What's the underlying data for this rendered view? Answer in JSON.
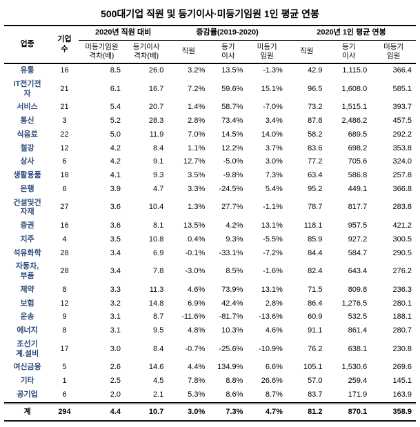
{
  "title": "500대기업 직원 및 등기이사·미등기임원 1인 평균 연봉",
  "colors": {
    "category_text": "#2e4a7b",
    "border": "#000000",
    "background": "#ffffff"
  },
  "header": {
    "industry": "업종",
    "count": "기업\n수",
    "group1": "2020년 직원 대비",
    "group2": "증감률(2019-2020)",
    "group3": "2020년 1인 평균 연봉",
    "g1a": "미등기임원\n격차(배)",
    "g1b": "등기이사\n격차(배)",
    "g2a": "직원",
    "g2b": "등기\n이사",
    "g2c": "미등기\n임원",
    "g3a": "직원",
    "g3b": "등기\n이사",
    "g3c": "미등기\n임원"
  },
  "rows": [
    {
      "cat": "유통",
      "n": "16",
      "a": "8.5",
      "b": "26.0",
      "c": "3.2%",
      "d": "13.5%",
      "e": "-1.3%",
      "f": "42.9",
      "g": "1,115.0",
      "h": "366.4"
    },
    {
      "cat": "IT전기전\n자",
      "n": "21",
      "a": "6.1",
      "b": "16.7",
      "c": "7.2%",
      "d": "59.6%",
      "e": "15.1%",
      "f": "96.5",
      "g": "1,608.0",
      "h": "585.1"
    },
    {
      "cat": "서비스",
      "n": "21",
      "a": "5.4",
      "b": "20.7",
      "c": "1.4%",
      "d": "58.7%",
      "e": "-7.0%",
      "f": "73.2",
      "g": "1,515.1",
      "h": "393.7"
    },
    {
      "cat": "통신",
      "n": "3",
      "a": "5.2",
      "b": "28.3",
      "c": "2.8%",
      "d": "73.4%",
      "e": "3.4%",
      "f": "87.8",
      "g": "2,486.2",
      "h": "457.5"
    },
    {
      "cat": "식음료",
      "n": "22",
      "a": "5.0",
      "b": "11.9",
      "c": "7.0%",
      "d": "14.5%",
      "e": "14.0%",
      "f": "58.2",
      "g": "689.5",
      "h": "292.2"
    },
    {
      "cat": "철강",
      "n": "12",
      "a": "4.2",
      "b": "8.4",
      "c": "1.1%",
      "d": "12.2%",
      "e": "3.7%",
      "f": "83.6",
      "g": "698.2",
      "h": "353.8"
    },
    {
      "cat": "상사",
      "n": "6",
      "a": "4.2",
      "b": "9.1",
      "c": "12.7%",
      "d": "-5.0%",
      "e": "3.0%",
      "f": "77.2",
      "g": "705.6",
      "h": "324.0"
    },
    {
      "cat": "생활용품",
      "n": "18",
      "a": "4.1",
      "b": "9.3",
      "c": "3.5%",
      "d": "-9.8%",
      "e": "7.3%",
      "f": "63.4",
      "g": "586.8",
      "h": "257.8"
    },
    {
      "cat": "은행",
      "n": "6",
      "a": "3.9",
      "b": "4.7",
      "c": "3.3%",
      "d": "-24.5%",
      "e": "5.4%",
      "f": "95.2",
      "g": "449.1",
      "h": "366.8"
    },
    {
      "cat": "건설및건\n자재",
      "n": "27",
      "a": "3.6",
      "b": "10.4",
      "c": "1.3%",
      "d": "27.7%",
      "e": "-1.1%",
      "f": "78.7",
      "g": "817.7",
      "h": "283.8"
    },
    {
      "cat": "증권",
      "n": "16",
      "a": "3.6",
      "b": "8.1",
      "c": "13.5%",
      "d": "4.2%",
      "e": "13.1%",
      "f": "118.1",
      "g": "957.5",
      "h": "421.2"
    },
    {
      "cat": "지주",
      "n": "4",
      "a": "3.5",
      "b": "10.8",
      "c": "0.4%",
      "d": "9.3%",
      "e": "-5.5%",
      "f": "85.9",
      "g": "927.2",
      "h": "300.5"
    },
    {
      "cat": "석유화학",
      "n": "28",
      "a": "3.4",
      "b": "6.9",
      "c": "-0.1%",
      "d": "-33.1%",
      "e": "-7.2%",
      "f": "84.4",
      "g": "584.7",
      "h": "290.5"
    },
    {
      "cat": "자동차,\n부품",
      "n": "28",
      "a": "3.4",
      "b": "7.8",
      "c": "-3.0%",
      "d": "8.5%",
      "e": "-1.6%",
      "f": "82.4",
      "g": "643.4",
      "h": "276.2"
    },
    {
      "cat": "제약",
      "n": "8",
      "a": "3.3",
      "b": "11.3",
      "c": "4.6%",
      "d": "73.9%",
      "e": "13.1%",
      "f": "71.5",
      "g": "809.8",
      "h": "236.3"
    },
    {
      "cat": "보험",
      "n": "12",
      "a": "3.2",
      "b": "14.8",
      "c": "6.9%",
      "d": "42.4%",
      "e": "2.8%",
      "f": "86.4",
      "g": "1,276.5",
      "h": "280.1"
    },
    {
      "cat": "운송",
      "n": "9",
      "a": "3.1",
      "b": "8.7",
      "c": "-11.6%",
      "d": "-81.7%",
      "e": "-13.6%",
      "f": "60.9",
      "g": "532.5",
      "h": "188.1"
    },
    {
      "cat": "에너지",
      "n": "8",
      "a": "3.1",
      "b": "9.5",
      "c": "4.8%",
      "d": "10.3%",
      "e": "4.6%",
      "f": "91.1",
      "g": "861.4",
      "h": "280.7"
    },
    {
      "cat": "조선기\n계.설비",
      "n": "17",
      "a": "3.0",
      "b": "8.4",
      "c": "-0.7%",
      "d": "-25.6%",
      "e": "-10.9%",
      "f": "76.2",
      "g": "638.1",
      "h": "230.8"
    },
    {
      "cat": "여신금융",
      "n": "5",
      "a": "2.6",
      "b": "14.6",
      "c": "4.4%",
      "d": "134.9%",
      "e": "6.6%",
      "f": "105.1",
      "g": "1,530.6",
      "h": "269.6"
    },
    {
      "cat": "기타",
      "n": "1",
      "a": "2.5",
      "b": "4.5",
      "c": "7.8%",
      "d": "8.8%",
      "e": "26.6%",
      "f": "57.0",
      "g": "259.4",
      "h": "145.1"
    },
    {
      "cat": "공기업",
      "n": "6",
      "a": "2.0",
      "b": "2.1",
      "c": "5.3%",
      "d": "8.6%",
      "e": "8.7%",
      "f": "83.7",
      "g": "171.9",
      "h": "163.9"
    }
  ],
  "total": {
    "cat": "계",
    "n": "294",
    "a": "4.4",
    "b": "10.7",
    "c": "3.0%",
    "d": "7.3%",
    "e": "4.7%",
    "f": "81.2",
    "g": "870.1",
    "h": "358.9"
  }
}
